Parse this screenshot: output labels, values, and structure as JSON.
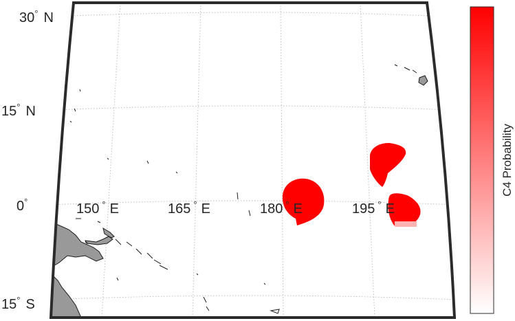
{
  "map": {
    "projection": "conic",
    "region": "Western and Central Pacific",
    "latitude_labels": [
      {
        "deg": "30",
        "hemi": "N"
      },
      {
        "deg": "15",
        "hemi": "N"
      },
      {
        "deg": "0",
        "hemi": ""
      },
      {
        "deg": "15",
        "hemi": "S"
      }
    ],
    "longitude_labels": [
      {
        "deg": "150",
        "hemi": "E"
      },
      {
        "deg": "165",
        "hemi": "E"
      },
      {
        "deg": "180",
        "hemi": "E"
      },
      {
        "deg": "195",
        "hemi": "E"
      }
    ],
    "degree_symbol": "°",
    "gridlines": true,
    "land_color": "#999999",
    "frame_color": "#2b2b2b"
  },
  "probability_regions": [
    {
      "name": "equatorial-dateline-region",
      "center_lon": 182,
      "center_lat": 1,
      "probability": 1.0
    },
    {
      "name": "northeast-region",
      "center_lon": 197,
      "center_lat": 7,
      "probability": 1.0
    },
    {
      "name": "southeast-region",
      "center_lon": 198,
      "center_lat": 0,
      "probability": 0.95
    }
  ],
  "colorbar": {
    "label": "C4 Probability",
    "color_low": "#ffffff",
    "color_high": "#ff0000",
    "orientation": "vertical"
  }
}
